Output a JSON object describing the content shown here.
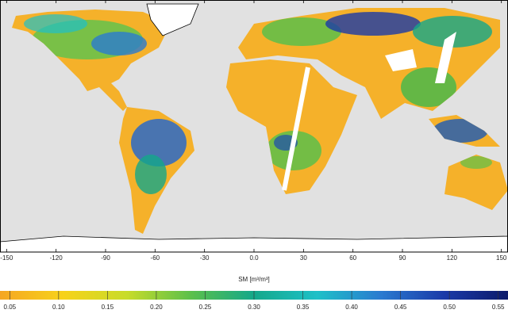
{
  "chart_data": {
    "type": "map",
    "xticks": [
      -150,
      -120,
      -90,
      -60,
      -30,
      {
        "value": 0,
        "label": "0.0"
      },
      30,
      60,
      90,
      120,
      150
    ],
    "xlim": [
      -154,
      154
    ],
    "colorbar": {
      "label": "SM [m³/m³]",
      "lim": [
        0.04,
        0.56
      ],
      "ticks": [
        0.05,
        {
          "value": 0.1,
          "label": "0.10"
        },
        0.15,
        {
          "value": 0.2,
          "label": "0.20"
        },
        0.25,
        {
          "value": 0.3,
          "label": "0.30"
        },
        0.35,
        {
          "value": 0.4,
          "label": "0.40"
        },
        0.45,
        {
          "value": 0.5,
          "label": "0.50"
        },
        0.55
      ],
      "colormap": [
        "#f5a623",
        "#f7d21a",
        "#c8dc2a",
        "#5cc04a",
        "#14a88a",
        "#1ec0c8",
        "#2a7ad0",
        "#1a3aa8",
        "#0c1a6a"
      ]
    }
  }
}
